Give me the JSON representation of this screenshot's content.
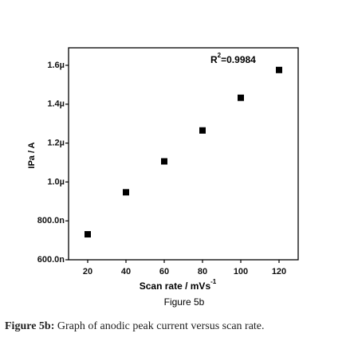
{
  "chart_data": {
    "type": "scatter",
    "xlabel": [
      "Scan rate / mVs",
      "-1"
    ],
    "ylabel": "IPa / A",
    "subtitle": "Figure 5b",
    "annotation": [
      "R",
      "2",
      "=0.9984"
    ],
    "x": [
      20,
      40,
      60,
      80,
      100,
      120
    ],
    "values": [
      7.31e-07,
      9.47e-07,
      1.106e-06,
      1.265e-06,
      1.433e-06,
      1.576e-06
    ],
    "color": "#000000",
    "xlim": [
      10,
      130
    ],
    "xticks": [
      20,
      40,
      60,
      80,
      100,
      120
    ],
    "ylim": [
      6e-07,
      1.69e-06
    ],
    "yticks": [
      {
        "value": 6e-07,
        "label": "600.0n"
      },
      {
        "value": 8e-07,
        "label": "800.0n"
      },
      {
        "value": 1e-06,
        "label": "1.0µ"
      },
      {
        "value": 1.2e-06,
        "label": "1.2µ"
      },
      {
        "value": 1.4e-06,
        "label": "1.4µ"
      },
      {
        "value": 1.6e-06,
        "label": "1.6µ"
      }
    ]
  },
  "caption": {
    "label": "Figure 5b:",
    "text": " Graph of anodic peak current versus scan rate."
  }
}
